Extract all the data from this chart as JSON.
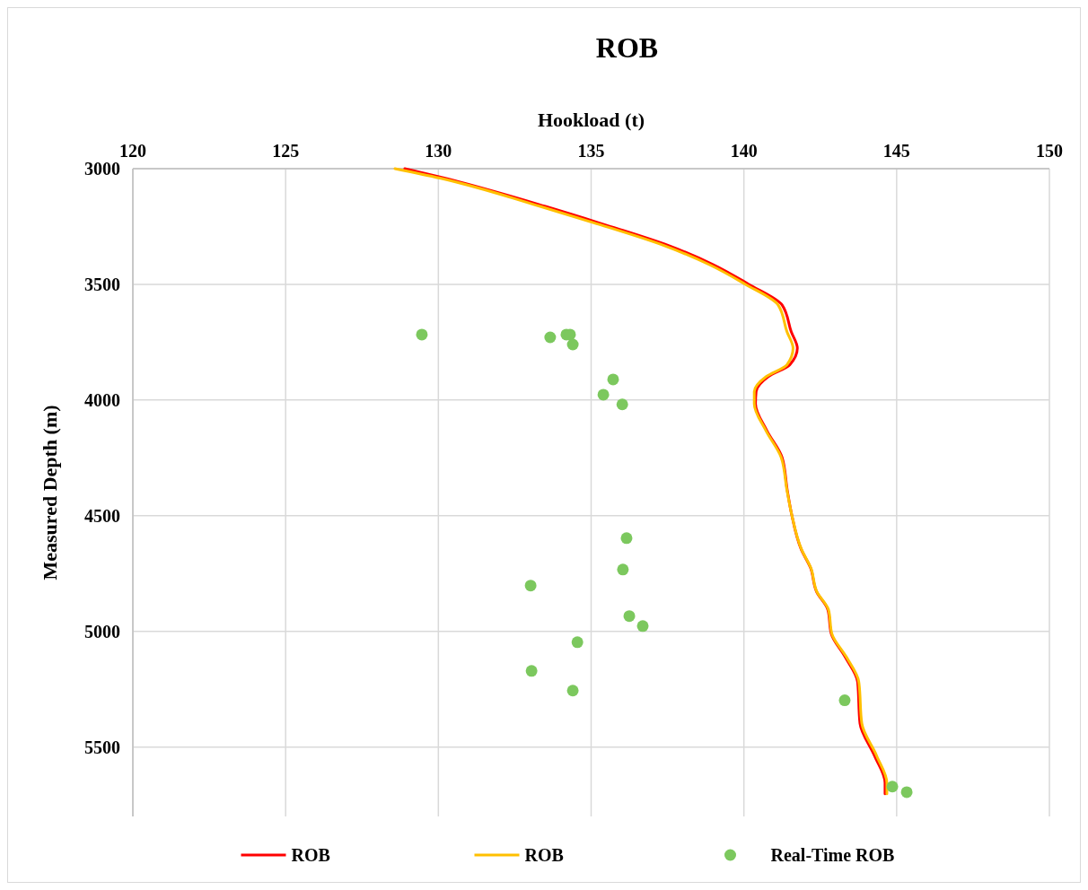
{
  "chart_data": {
    "type": "line",
    "title": "ROB",
    "xlabel": "Hookload (t)",
    "ylabel": "Measured Depth (m)",
    "xlim": [
      120,
      150
    ],
    "xticks": [
      120,
      125,
      130,
      135,
      140,
      145,
      150
    ],
    "ylim": [
      5800,
      3000
    ],
    "yticks": [
      3000,
      3500,
      4000,
      4500,
      5000,
      5500
    ],
    "grid": true,
    "legend": "bottom",
    "marker": "none",
    "line_style": "solid",
    "series": [
      {
        "name": "ROB",
        "color": "#ff0000",
        "x": [
          128.9,
          130.2,
          133.5,
          135.25,
          137.55,
          139.0,
          140.15,
          141.25,
          141.55,
          141.75,
          141.5,
          140.8,
          140.4,
          140.38,
          140.75,
          141.25,
          141.42,
          141.56,
          141.88,
          142.18,
          142.38,
          142.75,
          142.86,
          143.32,
          143.72,
          143.8,
          144.28,
          144.62,
          144.62
        ],
        "values": [
          3000,
          3041,
          3163,
          3234,
          3333,
          3415,
          3499,
          3589,
          3705,
          3776,
          3848,
          3899,
          3964,
          4016,
          4132,
          4248,
          4390,
          4492,
          4647,
          4725,
          4829,
          4907,
          5010,
          5112,
          5217,
          5398,
          5539,
          5655,
          5702
        ]
      },
      {
        "name": "ROB",
        "color": "#ffc000",
        "x": [
          128.58,
          130.05,
          133.33,
          135.09,
          137.4,
          138.87,
          140.04,
          141.12,
          141.41,
          141.61,
          141.41,
          140.73,
          140.34,
          140.34,
          140.72,
          141.22,
          141.41,
          141.56,
          141.89,
          142.19,
          142.39,
          142.77,
          142.88,
          143.36,
          143.76,
          143.86,
          144.35,
          144.68,
          144.68
        ],
        "values": [
          3000,
          3041,
          3163,
          3234,
          3333,
          3415,
          3499,
          3589,
          3705,
          3776,
          3848,
          3899,
          3964,
          4016,
          4132,
          4248,
          4390,
          4492,
          4647,
          4725,
          4829,
          4907,
          5010,
          5112,
          5217,
          5398,
          5539,
          5655,
          5702
        ]
      },
      {
        "name": "Real-Time ROB",
        "color": "#7cc85e",
        "type": "scatter",
        "marker": "circle",
        "x": [
          129.46,
          133.66,
          134.19,
          134.31,
          134.4,
          135.72,
          135.4,
          136.02,
          136.16,
          136.04,
          133.02,
          136.25,
          136.69,
          134.55,
          133.05,
          134.4,
          143.3,
          144.86,
          145.33
        ],
        "values": [
          3717,
          3729,
          3717,
          3717,
          3760,
          3911,
          3977,
          4019,
          4597,
          4733,
          4802,
          4934,
          4977,
          5047,
          5171,
          5256,
          5298,
          5671,
          5695
        ]
      }
    ]
  }
}
